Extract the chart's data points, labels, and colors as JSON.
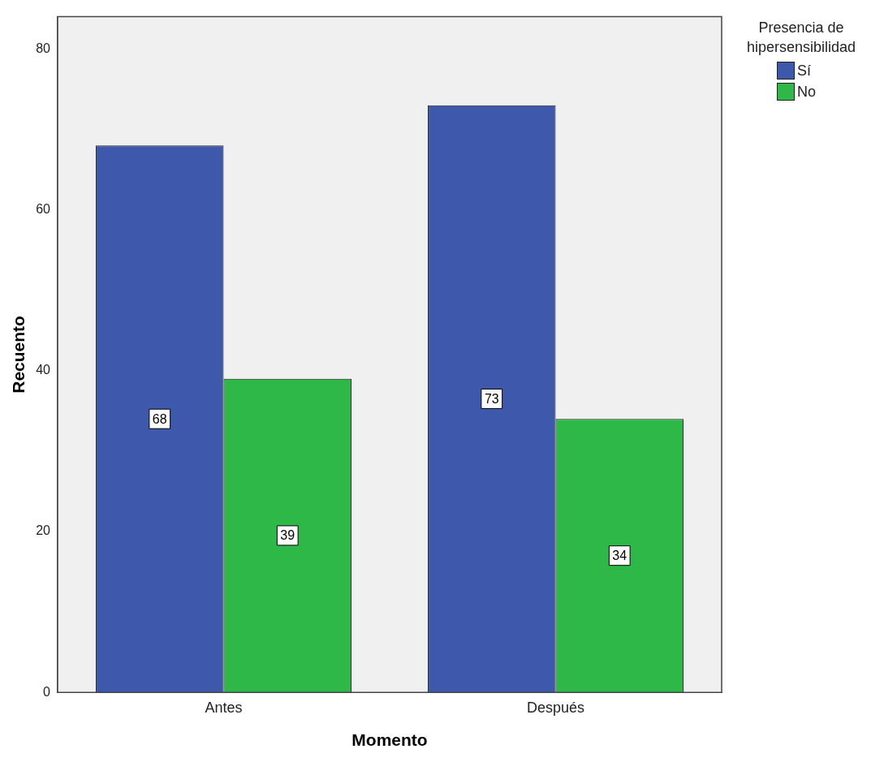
{
  "chart_data": {
    "type": "bar",
    "xlabel": "Momento",
    "ylabel": "Recuento",
    "legend_title": "Presencia de hipersensibilidad",
    "categories": [
      "Antes",
      "Después"
    ],
    "series": [
      {
        "name": "Sí",
        "color": "#3e58ac",
        "values": [
          68,
          73
        ]
      },
      {
        "name": "No",
        "color": "#2eb848",
        "values": [
          39,
          34
        ]
      }
    ],
    "ylim": [
      0,
      84
    ],
    "yticks": [
      0,
      20,
      40,
      60,
      80
    ],
    "grid": false,
    "legend": "top right",
    "data_labels": true
  }
}
